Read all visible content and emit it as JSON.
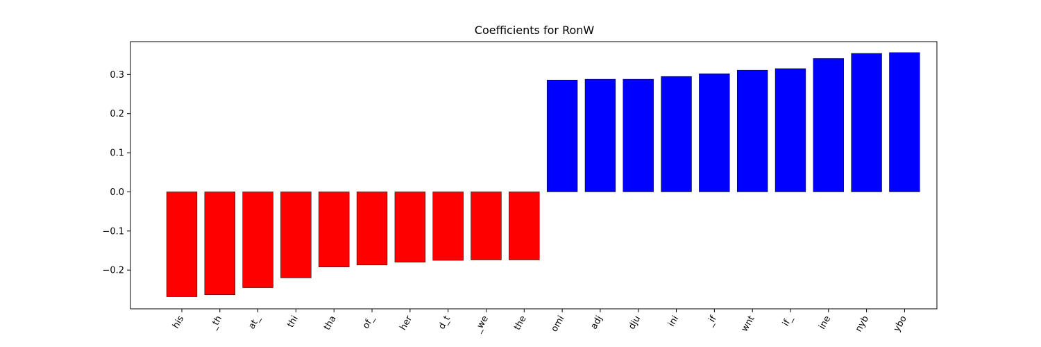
{
  "chart_data": {
    "type": "bar",
    "title": "Coefficients for RonW",
    "xlabel": "",
    "ylabel": "",
    "categories": [
      "his",
      "_th",
      "at_",
      "thi",
      "tha",
      "of_",
      "her",
      "d_t",
      "_we",
      "the",
      "omi",
      "adj",
      "dju",
      "ini",
      "_if",
      "wnt",
      "if_",
      "ine",
      "nyb",
      "ybo"
    ],
    "values": [
      -0.268,
      -0.263,
      -0.245,
      -0.22,
      -0.192,
      -0.187,
      -0.18,
      -0.175,
      -0.174,
      -0.174,
      0.286,
      0.288,
      0.288,
      0.295,
      0.302,
      0.311,
      0.315,
      0.341,
      0.354,
      0.356
    ],
    "colors": [
      "#ff0000",
      "#ff0000",
      "#ff0000",
      "#ff0000",
      "#ff0000",
      "#ff0000",
      "#ff0000",
      "#ff0000",
      "#ff0000",
      "#ff0000",
      "#0000ff",
      "#0000ff",
      "#0000ff",
      "#0000ff",
      "#0000ff",
      "#0000ff",
      "#0000ff",
      "#0000ff",
      "#0000ff",
      "#0000ff"
    ],
    "yticks": [
      -0.2,
      -0.1,
      0.0,
      0.1,
      0.2,
      0.3
    ],
    "ytick_labels": [
      "−0.2",
      "−0.1",
      "0.0",
      "0.1",
      "0.2",
      "0.3"
    ],
    "ylim": [
      -0.299,
      0.384
    ],
    "grid": false,
    "legend": "none"
  }
}
